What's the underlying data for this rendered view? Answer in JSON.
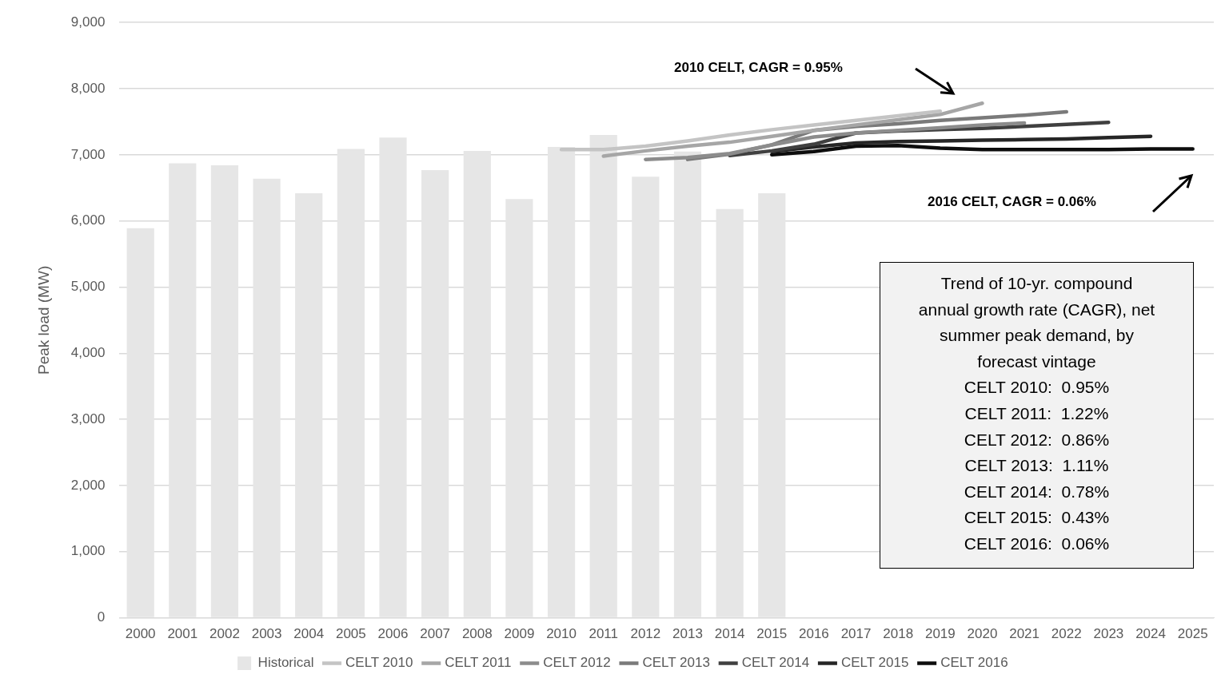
{
  "chart_data": {
    "type": "bar",
    "ylabel": "Peak load (MW)",
    "categories": [
      "2000",
      "2001",
      "2002",
      "2003",
      "2004",
      "2005",
      "2006",
      "2007",
      "2008",
      "2009",
      "2010",
      "2011",
      "2012",
      "2013",
      "2014",
      "2015",
      "2016",
      "2017",
      "2018",
      "2019",
      "2020",
      "2021",
      "2022",
      "2023",
      "2024",
      "2025"
    ],
    "series": [
      {
        "name": "Historical",
        "color": "#e6e6e6",
        "values": [
          5890,
          6870,
          6840,
          6640,
          6420,
          7090,
          7260,
          6770,
          7060,
          6330,
          7120,
          7300,
          6670,
          7050,
          6180,
          6420,
          null,
          null,
          null,
          null,
          null,
          null,
          null,
          null,
          null,
          null
        ]
      },
      {
        "name": "CELT 2010",
        "type": "line",
        "color": "#c4c4c4",
        "values": [
          null,
          null,
          null,
          null,
          null,
          null,
          null,
          null,
          null,
          null,
          7080,
          7080,
          7130,
          7210,
          7300,
          7380,
          7450,
          7520,
          7590,
          7660,
          null,
          null,
          null,
          null,
          null,
          null
        ]
      },
      {
        "name": "CELT 2011",
        "type": "line",
        "color": "#a6a6a6",
        "values": [
          null,
          null,
          null,
          null,
          null,
          null,
          null,
          null,
          null,
          null,
          null,
          6980,
          7060,
          7130,
          7190,
          7280,
          7370,
          7450,
          7530,
          7610,
          7780,
          null,
          null,
          null,
          null,
          null
        ]
      },
      {
        "name": "CELT 2012",
        "type": "line",
        "color": "#8c8c8c",
        "values": [
          null,
          null,
          null,
          null,
          null,
          null,
          null,
          null,
          null,
          null,
          null,
          null,
          6930,
          6960,
          7020,
          7150,
          7270,
          7330,
          7370,
          7410,
          7450,
          7480,
          null,
          null,
          null,
          null
        ]
      },
      {
        "name": "CELT 2013",
        "type": "line",
        "color": "#7a7a7a",
        "values": [
          null,
          null,
          null,
          null,
          null,
          null,
          null,
          null,
          null,
          null,
          null,
          null,
          null,
          6930,
          7010,
          7150,
          7370,
          7430,
          7470,
          7520,
          7560,
          7600,
          7650,
          null,
          null,
          null
        ]
      },
      {
        "name": "CELT 2014",
        "type": "line",
        "color": "#404040",
        "values": [
          null,
          null,
          null,
          null,
          null,
          null,
          null,
          null,
          null,
          null,
          null,
          null,
          null,
          null,
          6990,
          7060,
          7160,
          7330,
          7360,
          7380,
          7400,
          7430,
          7460,
          7490,
          null,
          null
        ]
      },
      {
        "name": "CELT 2015",
        "type": "line",
        "color": "#262626",
        "values": [
          null,
          null,
          null,
          null,
          null,
          null,
          null,
          null,
          null,
          null,
          null,
          null,
          null,
          null,
          null,
          7050,
          7120,
          7180,
          7200,
          7210,
          7220,
          7230,
          7240,
          7260,
          7280,
          null
        ]
      },
      {
        "name": "CELT 2016",
        "type": "line",
        "color": "#0d0d0d",
        "values": [
          null,
          null,
          null,
          null,
          null,
          null,
          null,
          null,
          null,
          null,
          null,
          null,
          null,
          null,
          null,
          7000,
          7050,
          7130,
          7140,
          7100,
          7080,
          7080,
          7080,
          7080,
          7090,
          7090
        ]
      }
    ],
    "ylim": [
      0,
      9000
    ],
    "yticks": [
      0,
      {
        "value": 1000,
        "label": "1,000"
      },
      {
        "value": 2000,
        "label": "2,000"
      },
      {
        "value": 3000,
        "label": "3,000"
      },
      {
        "value": 4000,
        "label": "4,000"
      },
      {
        "value": 5000,
        "label": "5,000"
      },
      {
        "value": 6000,
        "label": "6,000"
      },
      {
        "value": 7000,
        "label": "7,000"
      },
      {
        "value": 8000,
        "label": "8,000"
      },
      {
        "value": 9000,
        "label": "9,000"
      }
    ],
    "grid": "y",
    "legend": "bottom",
    "marker": "none",
    "line_style": "solid",
    "annotations": [
      "2010 CELT, CAGR = 0.95%",
      "2016 CELT, CAGR = 0.06%",
      "Trend of 10-yr. compound annual growth rate (CAGR), net summer peak demand, by forecast vintage",
      "CELT 2010:  0.95%",
      "CELT 2011:  1.22%",
      "CELT 2012:  0.86%",
      "CELT 2013:  1.11%",
      "CELT 2014:  0.78%",
      "CELT 2015:  0.43%",
      "CELT 2016:  0.06%"
    ]
  }
}
